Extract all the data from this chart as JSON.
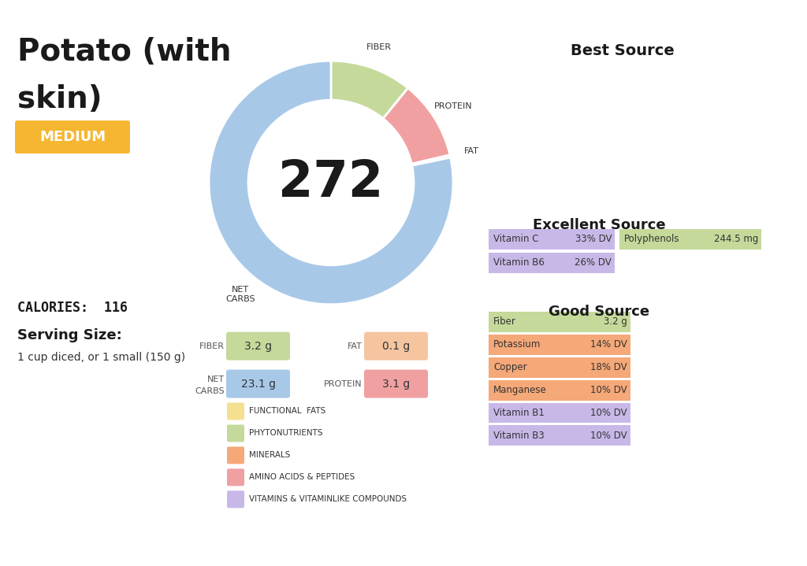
{
  "title_line1": "Potato (with",
  "title_line2": "skin)",
  "medium_label": "MEDIUM",
  "medium_color": "#F5B731",
  "calories_label": "CALORIES:  116",
  "serving_size_title": "Serving Size:",
  "serving_size_desc": "1 cup diced, or 1 small (150 g)",
  "donut_center_value": "272",
  "donut_segments": [
    {
      "label": "FIBER",
      "value": 3.2,
      "color": "#C5D99A"
    },
    {
      "label": "PROTEIN",
      "value": 3.1,
      "color": "#F0A0A0"
    },
    {
      "label": "FAT",
      "value": 0.1,
      "color": "#F5C5A0"
    },
    {
      "label": "NET\nCARBS",
      "value": 23.1,
      "color": "#A8C8E8"
    }
  ],
  "macro_labels": [
    "FIBER",
    "FAT",
    "NET\nCARBS",
    "PROTEIN"
  ],
  "macro_values": [
    "3.2 g",
    "0.1 g",
    "23.1 g",
    "3.1 g"
  ],
  "macro_colors": [
    "#C5D99A",
    "#F5C5A0",
    "#A8C8E8",
    "#F0A0A0"
  ],
  "best_source_title": "Best Source",
  "excellent_source_title": "Excellent Source",
  "excellent_items": [
    {
      "name": "Vitamin C",
      "value": "33% DV",
      "color": "#C8B8E8"
    },
    {
      "name": "Vitamin B6",
      "value": "26% DV",
      "color": "#C8B8E8"
    },
    {
      "name": "Polyphenols",
      "value": "244.5 mg",
      "color": "#C5D99A"
    }
  ],
  "good_source_title": "Good Source",
  "good_items": [
    {
      "name": "Fiber",
      "value": "3.2 g",
      "color": "#C5D99A"
    },
    {
      "name": "Potassium",
      "value": "14% DV",
      "color": "#F5A878"
    },
    {
      "name": "Copper",
      "value": "18% DV",
      "color": "#F5A878"
    },
    {
      "name": "Manganese",
      "value": "10% DV",
      "color": "#F5A878"
    },
    {
      "name": "Vitamin B1",
      "value": "10% DV",
      "color": "#C8B8E8"
    },
    {
      "name": "Vitamin B3",
      "value": "10% DV",
      "color": "#C8B8E8"
    }
  ],
  "legend_items": [
    {
      "color": "#F5E090",
      "label": "FUNCTIONAL  FATS"
    },
    {
      "color": "#C5D99A",
      "label": "PHYTONUTRIENTS"
    },
    {
      "color": "#F5A878",
      "label": "MINERALS"
    },
    {
      "color": "#F0A0A0",
      "label": "AMINO ACIDS & PEPTIDES"
    },
    {
      "color": "#C8B8E8",
      "label": "VITAMINS & VITAMINLIKE COMPOUNDS"
    }
  ],
  "background_color": "#FFFFFF",
  "border_color": "#F5B731"
}
